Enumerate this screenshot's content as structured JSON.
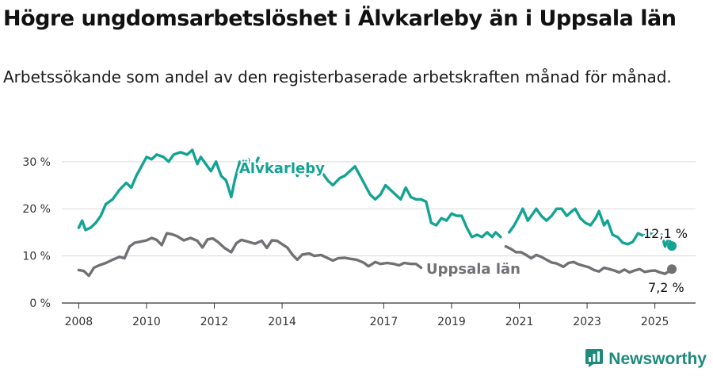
{
  "title": "Högre ungdomsarbetslöshet i Älvkarleby än i Uppsala län",
  "subtitle": "Arbetssökande som andel av den registerbaserade arbetskraften månad för månad.",
  "brand": "Newsworthy",
  "colors": {
    "alvkarleby": "#13a394",
    "uppsala": "#717074",
    "grid": "#d9d9d9",
    "brand": "#1e8a7c"
  },
  "chart_data": {
    "type": "line",
    "title": "",
    "xlabel": "",
    "ylabel": "",
    "x_unit": "decimal year",
    "xlim": [
      2007.5,
      2026.2
    ],
    "ylim": [
      0,
      33
    ],
    "yticks": [
      0,
      10,
      20,
      30
    ],
    "ytick_labels": [
      "0 %",
      "10 %",
      "20 %",
      "30 %"
    ],
    "xticks": [
      2008,
      2010,
      2012,
      2014,
      2017,
      2019,
      2021,
      2023,
      2025
    ],
    "xtick_labels": [
      "2008",
      "2010",
      "2012",
      "2014",
      "2017",
      "2019",
      "2021",
      "2023",
      "2025"
    ],
    "grid": true,
    "series": [
      {
        "name": "Älvkarleby",
        "end_label": "12,1 %",
        "segments": [
          [
            [
              2008.0,
              16
            ],
            [
              2008.1,
              17.5
            ],
            [
              2008.2,
              15.5
            ],
            [
              2008.35,
              16
            ],
            [
              2008.5,
              17
            ],
            [
              2008.65,
              18.5
            ],
            [
              2008.8,
              21
            ],
            [
              2009.0,
              22
            ],
            [
              2009.2,
              24
            ],
            [
              2009.4,
              25.5
            ],
            [
              2009.55,
              24.5
            ],
            [
              2009.7,
              27
            ],
            [
              2009.85,
              29
            ],
            [
              2010.0,
              31
            ],
            [
              2010.15,
              30.5
            ],
            [
              2010.3,
              31.5
            ],
            [
              2010.5,
              31
            ],
            [
              2010.65,
              30
            ],
            [
              2010.8,
              31.5
            ],
            [
              2011.0,
              32
            ],
            [
              2011.2,
              31.5
            ],
            [
              2011.35,
              32.5
            ],
            [
              2011.5,
              29.5
            ],
            [
              2011.6,
              31
            ],
            [
              2011.75,
              29.5
            ],
            [
              2011.9,
              28
            ],
            [
              2012.05,
              30
            ],
            [
              2012.2,
              27
            ],
            [
              2012.35,
              26
            ],
            [
              2012.5,
              22.5
            ],
            [
              2012.6,
              26
            ],
            [
              2012.75,
              30
            ],
            [
              2012.9,
              28.5
            ],
            [
              2013.0,
              30.5
            ],
            [
              2013.15,
              28.5
            ],
            [
              2013.3,
              30.8
            ]
          ],
          [
            [
              2014.3,
              29.5
            ],
            [
              2014.45,
              27
            ],
            [
              2014.6,
              28.5
            ],
            [
              2014.75,
              27
            ],
            [
              2014.9,
              29
            ]
          ],
          [
            [
              2015.2,
              27.5
            ],
            [
              2015.35,
              26
            ],
            [
              2015.5,
              25
            ],
            [
              2015.7,
              26.5
            ],
            [
              2015.85,
              27
            ],
            [
              2016.0,
              28
            ],
            [
              2016.15,
              29
            ],
            [
              2016.3,
              27
            ],
            [
              2016.45,
              25
            ],
            [
              2016.6,
              23
            ],
            [
              2016.75,
              22
            ],
            [
              2016.9,
              23
            ],
            [
              2017.05,
              25
            ],
            [
              2017.2,
              24
            ],
            [
              2017.35,
              23
            ],
            [
              2017.5,
              22
            ],
            [
              2017.65,
              24.5
            ],
            [
              2017.8,
              22.5
            ],
            [
              2017.95,
              22
            ],
            [
              2018.1,
              22
            ],
            [
              2018.25,
              21.5
            ],
            [
              2018.4,
              17
            ],
            [
              2018.55,
              16.5
            ],
            [
              2018.7,
              18
            ],
            [
              2018.85,
              17.5
            ],
            [
              2019.0,
              19
            ],
            [
              2019.15,
              18.5
            ],
            [
              2019.3,
              18.5
            ],
            [
              2019.45,
              16
            ],
            [
              2019.6,
              14
            ],
            [
              2019.75,
              14.5
            ],
            [
              2019.9,
              14
            ],
            [
              2020.05,
              15
            ],
            [
              2020.2,
              14
            ],
            [
              2020.3,
              15
            ],
            [
              2020.45,
              14
            ]
          ],
          [
            [
              2020.7,
              15
            ],
            [
              2020.85,
              16.5
            ],
            [
              2021.0,
              18.5
            ],
            [
              2021.1,
              20
            ],
            [
              2021.25,
              17.5
            ],
            [
              2021.4,
              19
            ],
            [
              2021.5,
              20
            ],
            [
              2021.65,
              18.5
            ],
            [
              2021.8,
              17.5
            ],
            [
              2021.95,
              18.5
            ],
            [
              2022.1,
              20
            ],
            [
              2022.25,
              20
            ],
            [
              2022.4,
              18.5
            ],
            [
              2022.55,
              19.5
            ],
            [
              2022.65,
              20
            ],
            [
              2022.8,
              18
            ],
            [
              2022.95,
              17
            ],
            [
              2023.1,
              16.5
            ],
            [
              2023.25,
              18
            ],
            [
              2023.35,
              19.5
            ],
            [
              2023.5,
              16.5
            ],
            [
              2023.6,
              17.5
            ],
            [
              2023.75,
              14.5
            ],
            [
              2023.9,
              14
            ],
            [
              2024.05,
              12.8
            ],
            [
              2024.2,
              12.5
            ],
            [
              2024.35,
              13
            ],
            [
              2024.5,
              14.8
            ],
            [
              2024.65,
              14.3
            ],
            [
              2024.8,
              14.5
            ],
            [
              2024.95,
              15
            ]
          ],
          [
            [
              2025.2,
              14.5
            ],
            [
              2025.3,
              12
            ],
            [
              2025.4,
              13.8
            ],
            [
              2025.5,
              12.1
            ]
          ]
        ]
      },
      {
        "name": "Uppsala län",
        "end_label": "7,2 %",
        "segments": [
          [
            [
              2008.0,
              7
            ],
            [
              2008.15,
              6.8
            ],
            [
              2008.3,
              5.8
            ],
            [
              2008.45,
              7.5
            ],
            [
              2008.6,
              8
            ],
            [
              2008.8,
              8.5
            ],
            [
              2009.0,
              9.2
            ],
            [
              2009.2,
              9.8
            ],
            [
              2009.35,
              9.5
            ],
            [
              2009.5,
              12
            ],
            [
              2009.65,
              12.8
            ],
            [
              2009.8,
              13
            ],
            [
              2010.0,
              13.3
            ],
            [
              2010.15,
              13.8
            ],
            [
              2010.3,
              13.4
            ],
            [
              2010.45,
              12.3
            ],
            [
              2010.6,
              14.8
            ],
            [
              2010.75,
              14.6
            ],
            [
              2010.9,
              14.2
            ],
            [
              2011.1,
              13.3
            ],
            [
              2011.3,
              13.8
            ],
            [
              2011.5,
              13.2
            ],
            [
              2011.65,
              11.8
            ],
            [
              2011.8,
              13.5
            ],
            [
              2011.95,
              13.7
            ],
            [
              2012.1,
              13
            ],
            [
              2012.3,
              11.7
            ],
            [
              2012.5,
              10.8
            ],
            [
              2012.65,
              12.7
            ],
            [
              2012.8,
              13.4
            ],
            [
              2013.0,
              13
            ],
            [
              2013.2,
              12.6
            ],
            [
              2013.4,
              13.2
            ],
            [
              2013.55,
              11.7
            ],
            [
              2013.7,
              13.3
            ],
            [
              2013.85,
              13.2
            ],
            [
              2014.0,
              12.5
            ],
            [
              2014.15,
              11.8
            ],
            [
              2014.3,
              10.3
            ],
            [
              2014.45,
              9.2
            ],
            [
              2014.6,
              10.3
            ],
            [
              2014.8,
              10.5
            ],
            [
              2014.95,
              10
            ],
            [
              2015.15,
              10.2
            ],
            [
              2015.3,
              9.7
            ],
            [
              2015.5,
              9
            ],
            [
              2015.65,
              9.5
            ],
            [
              2015.85,
              9.6
            ],
            [
              2016.0,
              9.4
            ],
            [
              2016.2,
              9.2
            ],
            [
              2016.4,
              8.6
            ],
            [
              2016.55,
              7.8
            ],
            [
              2016.75,
              8.7
            ],
            [
              2016.9,
              8.3
            ],
            [
              2017.1,
              8.5
            ],
            [
              2017.3,
              8.3
            ],
            [
              2017.45,
              8
            ],
            [
              2017.6,
              8.5
            ],
            [
              2017.8,
              8.3
            ],
            [
              2017.95,
              8.3
            ],
            [
              2018.1,
              7.5
            ]
          ],
          [
            [
              2020.6,
              12
            ],
            [
              2020.75,
              11.5
            ],
            [
              2020.9,
              10.8
            ],
            [
              2021.05,
              10.8
            ],
            [
              2021.2,
              10.2
            ],
            [
              2021.35,
              9.5
            ],
            [
              2021.5,
              10.2
            ],
            [
              2021.65,
              9.8
            ],
            [
              2021.8,
              9.2
            ],
            [
              2021.95,
              8.6
            ],
            [
              2022.1,
              8.4
            ],
            [
              2022.3,
              7.7
            ],
            [
              2022.45,
              8.5
            ],
            [
              2022.6,
              8.7
            ],
            [
              2022.75,
              8.2
            ],
            [
              2022.9,
              7.9
            ],
            [
              2023.05,
              7.6
            ],
            [
              2023.2,
              7
            ],
            [
              2023.35,
              6.7
            ],
            [
              2023.5,
              7.5
            ],
            [
              2023.65,
              7.2
            ],
            [
              2023.8,
              6.9
            ],
            [
              2023.95,
              6.5
            ],
            [
              2024.1,
              7.1
            ],
            [
              2024.25,
              6.5
            ],
            [
              2024.4,
              6.9
            ],
            [
              2024.55,
              7.2
            ],
            [
              2024.7,
              6.6
            ],
            [
              2024.85,
              6.8
            ],
            [
              2025.0,
              6.9
            ],
            [
              2025.15,
              6.5
            ],
            [
              2025.3,
              6.2
            ],
            [
              2025.5,
              7.2
            ]
          ]
        ]
      }
    ]
  }
}
